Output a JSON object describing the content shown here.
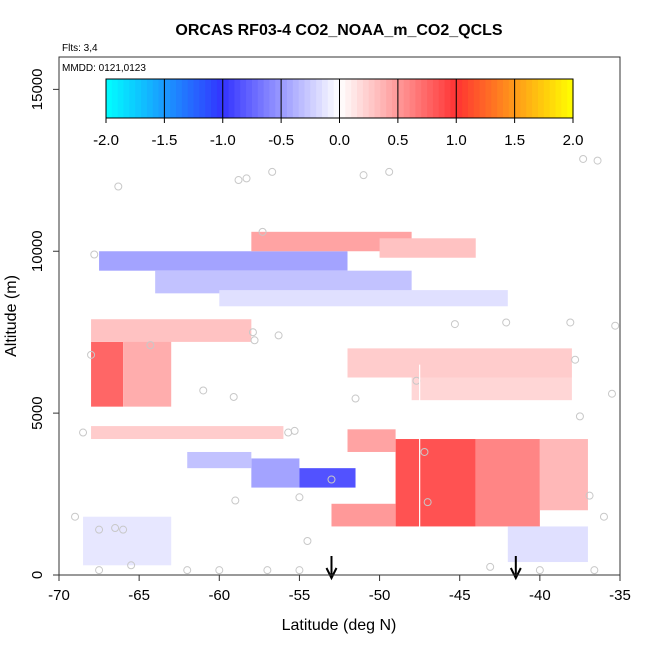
{
  "chart_data": {
    "type": "heatmap",
    "title": "ORCAS RF03-4 CO2_NOAA_m_CO2_QCLS",
    "annotations": {
      "flights": "Flts: 3,4",
      "dates": "MMDD: 0121,0123"
    },
    "xlabel": "Latitude (deg N)",
    "ylabel": "Altitude (m)",
    "xlim": [
      -70,
      -35
    ],
    "ylim": [
      0,
      16000
    ],
    "x_ticks": [
      -70,
      -65,
      -60,
      -55,
      -50,
      -45,
      -40,
      -35
    ],
    "x_tick_labels": [
      "-70",
      "-65",
      "-60",
      "-55",
      "-50",
      "-45",
      "-40",
      "-35"
    ],
    "y_ticks": [
      0,
      5000,
      10000,
      15000
    ],
    "y_tick_labels": [
      "0",
      "5000",
      "10000",
      "15000"
    ],
    "colorbar": {
      "range": [
        -2,
        2
      ],
      "ticks": [
        -2,
        -1.5,
        -1,
        -0.5,
        0,
        0.5,
        1,
        1.5,
        2
      ],
      "tick_labels": [
        "-2.0",
        "-1.5",
        "-1.0",
        "-0.5",
        "0.0",
        "0.5",
        "1.0",
        "1.5",
        "2.0"
      ],
      "colors": [
        "#00ffff",
        "#3333ff",
        "#ffffff",
        "#ff3333",
        "#ffff00"
      ]
    },
    "fields": [
      {
        "lat": [
          -68,
          -66
        ],
        "alt": [
          5200,
          7200
        ],
        "value": 0.75
      },
      {
        "lat": [
          -66,
          -63
        ],
        "alt": [
          5200,
          7600
        ],
        "value": 0.4
      },
      {
        "lat": [
          -68,
          -58
        ],
        "alt": [
          7200,
          7900
        ],
        "value": 0.3
      },
      {
        "lat": [
          -67.5,
          -52
        ],
        "alt": [
          9400,
          10000
        ],
        "value": -0.45
      },
      {
        "lat": [
          -64,
          -48
        ],
        "alt": [
          8700,
          9400
        ],
        "value": -0.3
      },
      {
        "lat": [
          -60,
          -42
        ],
        "alt": [
          8300,
          8800
        ],
        "value": -0.15
      },
      {
        "lat": [
          -58,
          -48
        ],
        "alt": [
          10000,
          10600
        ],
        "value": 0.45
      },
      {
        "lat": [
          -50,
          -44
        ],
        "alt": [
          9800,
          10400
        ],
        "value": 0.3
      },
      {
        "lat": [
          -52,
          -38
        ],
        "alt": [
          6100,
          7000
        ],
        "value": 0.25
      },
      {
        "lat": [
          -48,
          -38
        ],
        "alt": [
          5400,
          6100
        ],
        "value": 0.2
      },
      {
        "lat": [
          -68,
          -56
        ],
        "alt": [
          4200,
          4600
        ],
        "value": 0.25
      },
      {
        "lat": [
          -58,
          -55
        ],
        "alt": [
          2700,
          3600
        ],
        "value": -0.45
      },
      {
        "lat": [
          -55,
          -51.5
        ],
        "alt": [
          2700,
          3300
        ],
        "value": -0.85
      },
      {
        "lat": [
          -62,
          -58
        ],
        "alt": [
          3300,
          3800
        ],
        "value": -0.3
      },
      {
        "lat": [
          -49,
          -44
        ],
        "alt": [
          1500,
          4200
        ],
        "value": 0.85
      },
      {
        "lat": [
          -44,
          -40
        ],
        "alt": [
          1500,
          4200
        ],
        "value": 0.6
      },
      {
        "lat": [
          -40,
          -37
        ],
        "alt": [
          2000,
          4200
        ],
        "value": 0.35
      },
      {
        "lat": [
          -53,
          -49
        ],
        "alt": [
          1500,
          2200
        ],
        "value": 0.5
      },
      {
        "lat": [
          -52,
          -49
        ],
        "alt": [
          3800,
          4500
        ],
        "value": 0.45
      },
      {
        "lat": [
          -68.5,
          -63
        ],
        "alt": [
          300,
          1800
        ],
        "value": -0.12
      },
      {
        "lat": [
          -42,
          -37
        ],
        "alt": [
          400,
          1500
        ],
        "value": -0.15
      }
    ],
    "samples": [
      [
        -69,
        1800
      ],
      [
        -68,
        6800
      ],
      [
        -68.5,
        4400
      ],
      [
        -67.5,
        1400
      ],
      [
        -66.5,
        1450
      ],
      [
        -66,
        1400
      ],
      [
        -67.5,
        150
      ],
      [
        -65.5,
        300
      ],
      [
        -62,
        150
      ],
      [
        -60,
        150
      ],
      [
        -57,
        150
      ],
      [
        -55,
        150
      ],
      [
        -54.5,
        1050
      ],
      [
        -55,
        2400
      ],
      [
        -53,
        2950
      ],
      [
        -51.5,
        5450
      ],
      [
        -59,
        2300
      ],
      [
        -61,
        5700
      ],
      [
        -59.1,
        5500
      ],
      [
        -57.8,
        7250
      ],
      [
        -57.9,
        7500
      ],
      [
        -56.3,
        7400
      ],
      [
        -55.7,
        4400
      ],
      [
        -55.3,
        4450
      ],
      [
        -64.3,
        7100
      ],
      [
        -66.3,
        12000
      ],
      [
        -58.8,
        12200
      ],
      [
        -58.3,
        12250
      ],
      [
        -56.7,
        12450
      ],
      [
        -51,
        12350
      ],
      [
        -49.4,
        12450
      ],
      [
        -57.3,
        10600
      ],
      [
        -47.7,
        6000
      ],
      [
        -47.2,
        3800
      ],
      [
        -47,
        2250
      ],
      [
        -45.3,
        7750
      ],
      [
        -42.1,
        7800
      ],
      [
        -38.1,
        7800
      ],
      [
        -37.8,
        6650
      ],
      [
        -37.5,
        4900
      ],
      [
        -36.9,
        2450
      ],
      [
        -36,
        1800
      ],
      [
        -35.3,
        7700
      ],
      [
        -35.5,
        5600
      ],
      [
        -43.1,
        250
      ],
      [
        -40,
        150
      ],
      [
        -36.6,
        150
      ],
      [
        -37.3,
        12850
      ],
      [
        -36.4,
        12800
      ],
      [
        -67.8,
        9900
      ]
    ],
    "vertical_marker_lat": -47.5,
    "arrows_lat": [
      -53,
      -41.5
    ]
  }
}
